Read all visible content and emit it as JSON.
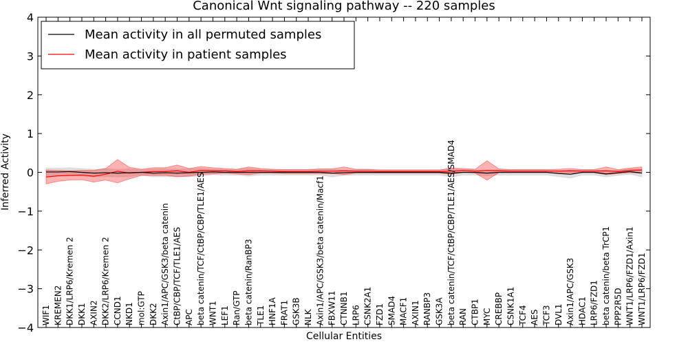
{
  "chart_data": {
    "type": "line",
    "title": "Canonical Wnt signaling pathway -- 220 samples",
    "xlabel": "Cellular Entities",
    "ylabel": "Inferred Activity",
    "ylim": [
      -4,
      4
    ],
    "yticks": [
      -4,
      -3,
      -2,
      -1,
      0,
      1,
      2,
      3,
      4
    ],
    "ytick_labels": [
      "−4",
      "−3",
      "−2",
      "−1",
      "0",
      "1",
      "2",
      "3",
      "4"
    ],
    "legend_position": "top-left",
    "categories": [
      "WIF1",
      "KREMEN2",
      "DKK1/LRP6/Kremen 2",
      "DKK1",
      "AXIN2",
      "DKK2/LRP6/Kremen 2",
      "CCND1",
      "NKD1",
      "mol:GTP",
      "DKK2",
      "Axin1/APC/GSK3/beta catenin",
      "CtBP/CBP/TCF/TLE1/AES",
      "APC",
      "beta catenin/TCF/CtBP/CBP/TLE1/AES",
      "WNT1",
      "LEF1",
      "Ran/GTP",
      "beta catenin/RanBP3",
      "TLE1",
      "HNF1A",
      "FRAT1",
      "GSK3B",
      "NLK",
      "Axin1/APC/GSK3/beta catenin/Macf1",
      "FBXW11",
      "CTNNB1",
      "LRP6",
      "CSNK2A1",
      "FZD1",
      "SMAD4",
      "MACF1",
      "AXIN1",
      "RANBP3",
      "GSK3A",
      "beta catenin/TCF/CtBP/CBP/TLE1/AES/SMAD4",
      "RAN",
      "CTBP1",
      "MYC",
      "CREBBP",
      "CSNK1A1",
      "TCF4",
      "AES",
      "TCF3",
      "DVL1",
      "Axin1/APC/GSK3",
      "HDAC1",
      "LRP6/FZD1",
      "beta catenin/beta TrCP1",
      "PPP2R5D",
      "WNT1/LRP6/FZD1/Axin1",
      "WNT1/LRP6/FZD1"
    ],
    "series": [
      {
        "name": "Mean activity in all permuted samples",
        "color": "#000000",
        "band_color": "#bbbbbb",
        "values": [
          0.01,
          0.01,
          0.02,
          0.0,
          -0.02,
          -0.01,
          -0.02,
          -0.01,
          0.0,
          -0.02,
          -0.01,
          -0.02,
          -0.01,
          0.0,
          0.01,
          0.0,
          0.0,
          0.0,
          0.0,
          0.0,
          0.0,
          0.0,
          0.0,
          0.0,
          -0.02,
          -0.01,
          0.0,
          0.0,
          0.0,
          0.0,
          0.0,
          0.0,
          0.0,
          0.0,
          -0.02,
          0.0,
          0.0,
          -0.02,
          0.0,
          0.0,
          0.0,
          0.0,
          0.0,
          -0.03,
          -0.05,
          0.0,
          0.0,
          -0.04,
          -0.01,
          0.02,
          -0.02
        ],
        "band": [
          0.1,
          0.1,
          0.1,
          0.1,
          0.1,
          0.1,
          0.1,
          0.1,
          0.07,
          0.1,
          0.1,
          0.1,
          0.1,
          0.1,
          0.07,
          0.07,
          0.07,
          0.1,
          0.07,
          0.07,
          0.07,
          0.07,
          0.07,
          0.07,
          0.1,
          0.07,
          0.07,
          0.07,
          0.07,
          0.07,
          0.07,
          0.07,
          0.07,
          0.07,
          0.1,
          0.07,
          0.07,
          0.07,
          0.07,
          0.07,
          0.07,
          0.07,
          0.07,
          0.08,
          0.1,
          0.07,
          0.07,
          0.08,
          0.07,
          0.07,
          0.1
        ]
      },
      {
        "name": "Mean activity in patient samples",
        "color": "#ff0000",
        "band_color": "#ff0000",
        "values": [
          -0.12,
          -0.09,
          -0.08,
          -0.07,
          -0.1,
          -0.05,
          0.03,
          -0.02,
          0.0,
          0.02,
          0.02,
          0.04,
          0.0,
          0.05,
          0.04,
          0.04,
          0.02,
          0.04,
          0.04,
          0.03,
          0.02,
          0.02,
          0.02,
          0.03,
          0.03,
          0.04,
          0.03,
          0.03,
          0.02,
          0.02,
          0.02,
          0.02,
          0.02,
          0.02,
          0.03,
          0.05,
          0.03,
          0.05,
          0.04,
          0.03,
          0.03,
          0.03,
          0.03,
          0.03,
          0.04,
          0.03,
          0.03,
          0.04,
          0.02,
          0.05,
          0.06
        ],
        "band": [
          0.18,
          0.14,
          0.12,
          0.12,
          0.15,
          0.15,
          0.3,
          0.15,
          0.08,
          0.1,
          0.1,
          0.15,
          0.1,
          0.1,
          0.08,
          0.06,
          0.06,
          0.1,
          0.06,
          0.05,
          0.05,
          0.05,
          0.05,
          0.06,
          0.06,
          0.1,
          0.05,
          0.05,
          0.04,
          0.04,
          0.04,
          0.04,
          0.04,
          0.04,
          0.08,
          0.05,
          0.05,
          0.25,
          0.05,
          0.04,
          0.04,
          0.04,
          0.04,
          0.05,
          0.06,
          0.04,
          0.04,
          0.1,
          0.05,
          0.06,
          0.08
        ]
      }
    ]
  }
}
